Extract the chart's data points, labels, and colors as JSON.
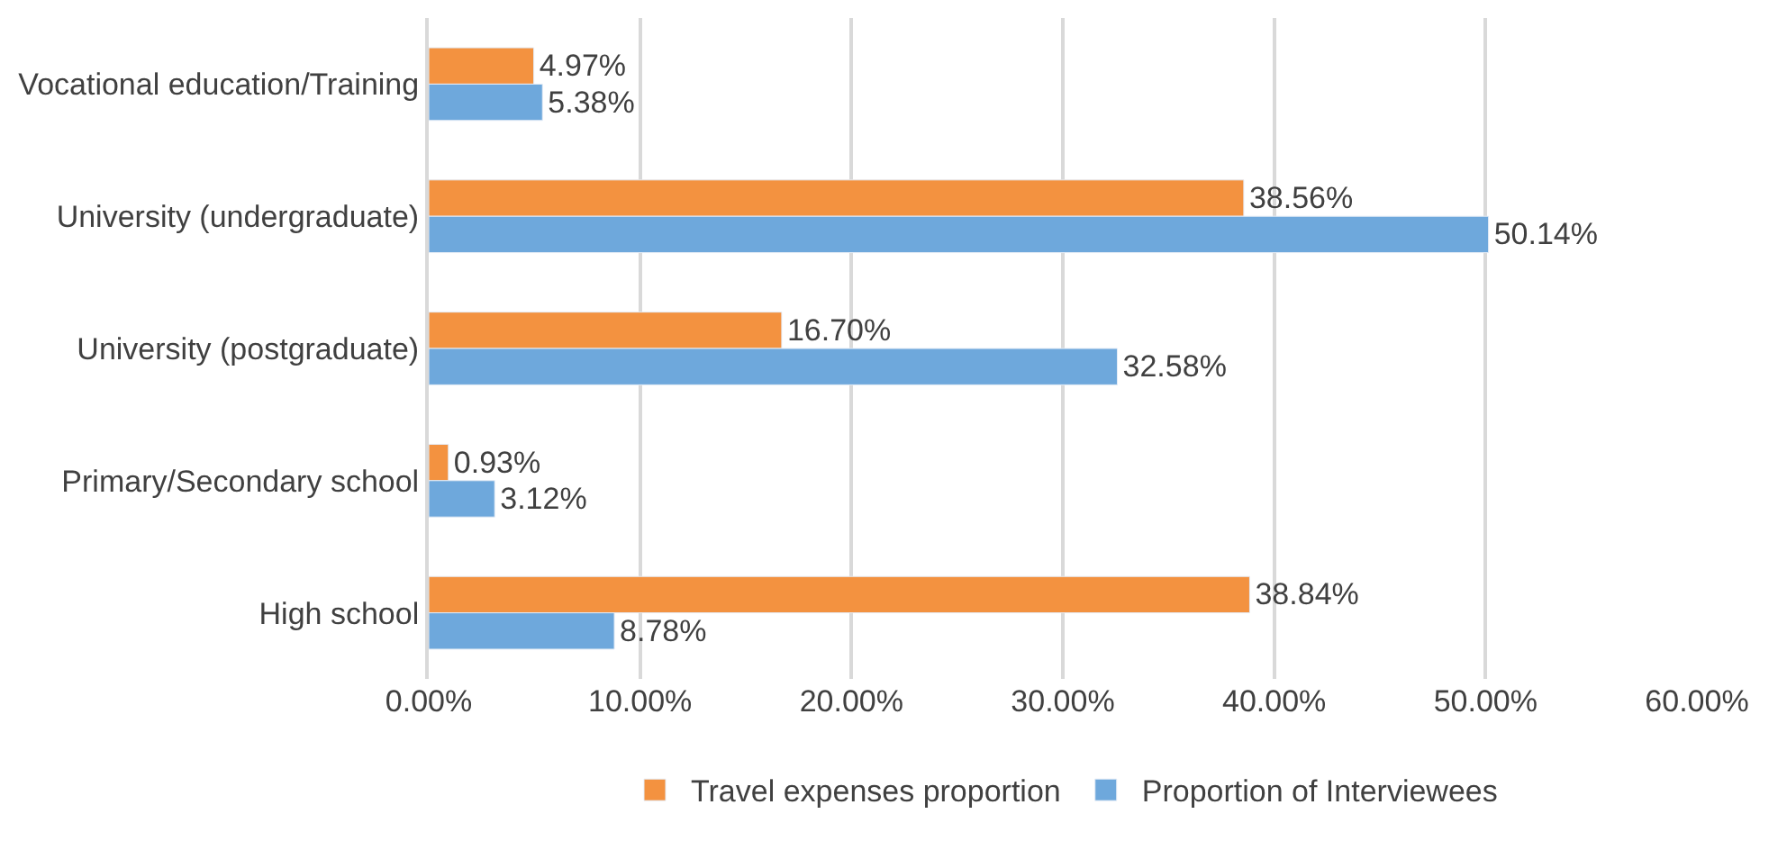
{
  "chart_data": {
    "type": "bar",
    "orientation": "horizontal",
    "categories": [
      "Vocational education/Training",
      "University (undergraduate)",
      "University (postgraduate)",
      "Primary/Secondary school",
      "High school"
    ],
    "series": [
      {
        "name": "Travel expenses proportion",
        "color": "#f39240",
        "values": [
          4.97,
          38.56,
          16.7,
          0.93,
          38.84
        ],
        "value_labels": [
          "4.97%",
          "38.56%",
          "16.70%",
          "0.93%",
          "38.84%"
        ]
      },
      {
        "name": "Proportion of Interviewees",
        "color": "#6ea8dc",
        "values": [
          5.38,
          50.14,
          32.58,
          3.12,
          8.78
        ],
        "value_labels": [
          "5.38%",
          "50.14%",
          "32.58%",
          "3.12%",
          "8.78%"
        ]
      }
    ],
    "xlim": [
      0,
      60
    ],
    "xticks": [
      {
        "value": 0,
        "label": "0.00%"
      },
      {
        "value": 10,
        "label": "10.00%"
      },
      {
        "value": 20,
        "label": "20.00%"
      },
      {
        "value": 30,
        "label": "30.00%"
      },
      {
        "value": 40,
        "label": "40.00%"
      },
      {
        "value": 50,
        "label": "50.00%"
      },
      {
        "value": 60,
        "label": "60.00%"
      }
    ],
    "grid": "x",
    "legend": "bottom"
  }
}
